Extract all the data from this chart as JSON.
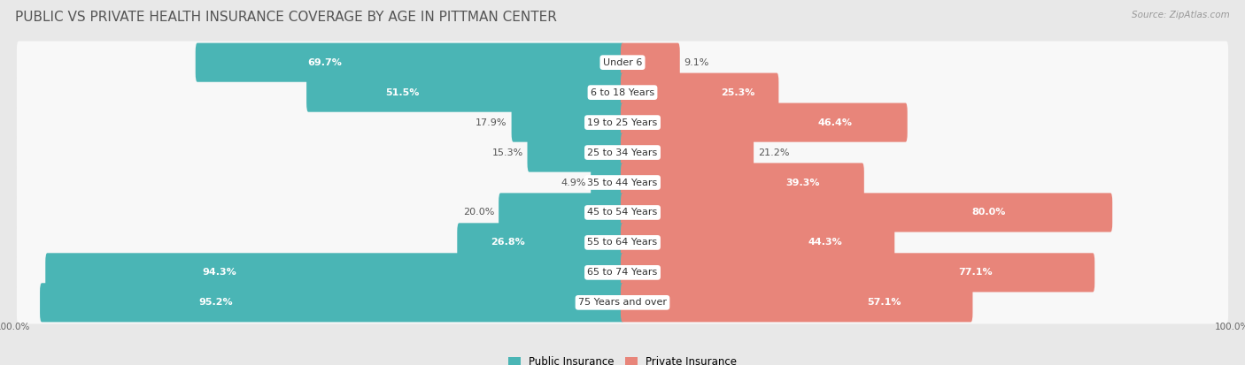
{
  "title": "PUBLIC VS PRIVATE HEALTH INSURANCE COVERAGE BY AGE IN PITTMAN CENTER",
  "source": "Source: ZipAtlas.com",
  "categories": [
    "Under 6",
    "6 to 18 Years",
    "19 to 25 Years",
    "25 to 34 Years",
    "35 to 44 Years",
    "45 to 54 Years",
    "55 to 64 Years",
    "65 to 74 Years",
    "75 Years and over"
  ],
  "public_values": [
    69.7,
    51.5,
    17.9,
    15.3,
    4.9,
    20.0,
    26.8,
    94.3,
    95.2
  ],
  "private_values": [
    9.1,
    25.3,
    46.4,
    21.2,
    39.3,
    80.0,
    44.3,
    77.1,
    57.1
  ],
  "public_color": "#4ab5b5",
  "private_color": "#e8857a",
  "background_color": "#e8e8e8",
  "bar_background": "#f8f8f8",
  "title_fontsize": 11,
  "label_fontsize": 8,
  "value_fontsize": 8,
  "legend_fontsize": 8.5,
  "source_fontsize": 7.5,
  "axis_label_fontsize": 7.5,
  "pub_white_threshold": 25,
  "priv_white_threshold": 25
}
